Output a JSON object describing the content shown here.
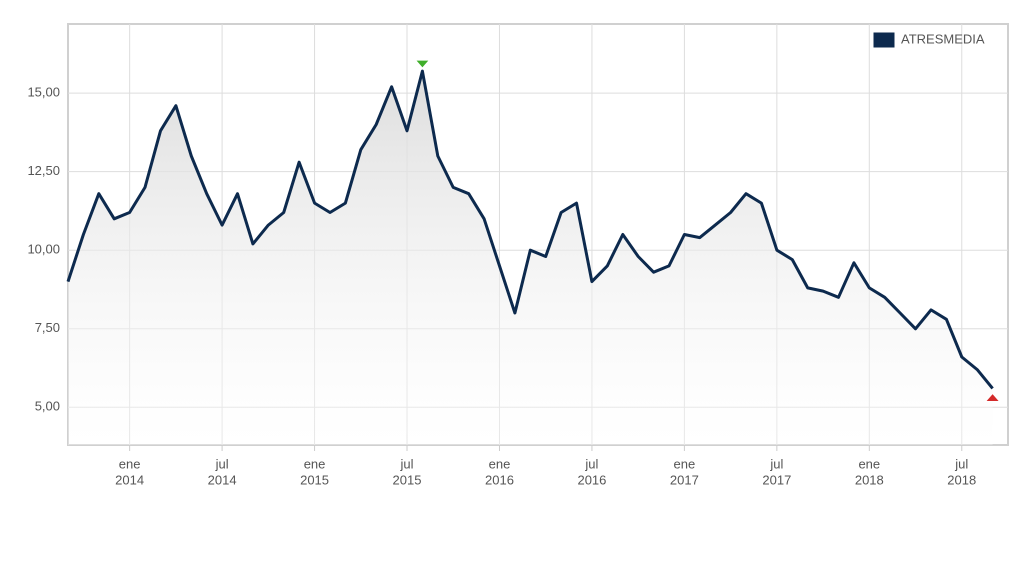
{
  "chart_data": {
    "type": "line",
    "x": [
      "2013-09",
      "2013-10",
      "2013-11",
      "2013-12",
      "2014-01",
      "2014-02",
      "2014-03",
      "2014-04",
      "2014-05",
      "2014-06",
      "2014-07",
      "2014-08",
      "2014-09",
      "2014-10",
      "2014-11",
      "2014-12",
      "2015-01",
      "2015-02",
      "2015-03",
      "2015-04",
      "2015-05",
      "2015-06",
      "2015-07",
      "2015-08",
      "2015-09",
      "2015-10",
      "2015-11",
      "2015-12",
      "2016-01",
      "2016-02",
      "2016-03",
      "2016-04",
      "2016-05",
      "2016-06",
      "2016-07",
      "2016-08",
      "2016-09",
      "2016-10",
      "2016-11",
      "2016-12",
      "2017-01",
      "2017-02",
      "2017-03",
      "2017-04",
      "2017-05",
      "2017-06",
      "2017-07",
      "2017-08",
      "2017-09",
      "2017-10",
      "2017-11",
      "2017-12",
      "2018-01",
      "2018-02",
      "2018-03",
      "2018-04",
      "2018-05",
      "2018-06",
      "2018-07",
      "2018-08",
      "2018-09"
    ],
    "series": [
      {
        "name": "ATRESMEDIA",
        "color": "#0d2a4e",
        "values": [
          9.0,
          10.5,
          11.8,
          11.0,
          11.2,
          12.0,
          13.8,
          14.6,
          13.0,
          11.8,
          10.8,
          11.8,
          10.2,
          10.8,
          11.2,
          12.8,
          11.5,
          11.2,
          11.5,
          13.2,
          14.0,
          15.2,
          13.8,
          15.7,
          13.0,
          12.0,
          11.8,
          11.0,
          9.5,
          8.0,
          10.0,
          9.8,
          11.2,
          11.5,
          9.0,
          9.5,
          10.5,
          9.8,
          9.3,
          9.5,
          10.5,
          10.4,
          10.8,
          11.2,
          11.8,
          11.5,
          10.0,
          9.7,
          8.8,
          8.7,
          8.5,
          9.6,
          8.8,
          8.5,
          8.0,
          7.5,
          8.1,
          7.8,
          6.6,
          6.2,
          5.6
        ]
      }
    ],
    "xlim": [
      "2013-09",
      "2018-10"
    ],
    "xticks": [
      {
        "value": "2014-01",
        "label": [
          "ene",
          "2014"
        ]
      },
      {
        "value": "2014-07",
        "label": [
          "jul",
          "2014"
        ]
      },
      {
        "value": "2015-01",
        "label": [
          "ene",
          "2015"
        ]
      },
      {
        "value": "2015-07",
        "label": [
          "jul",
          "2015"
        ]
      },
      {
        "value": "2016-01",
        "label": [
          "ene",
          "2016"
        ]
      },
      {
        "value": "2016-07",
        "label": [
          "jul",
          "2016"
        ]
      },
      {
        "value": "2017-01",
        "label": [
          "ene",
          "2017"
        ]
      },
      {
        "value": "2017-07",
        "label": [
          "jul",
          "2017"
        ]
      },
      {
        "value": "2018-01",
        "label": [
          "ene",
          "2018"
        ]
      },
      {
        "value": "2018-07",
        "label": [
          "jul",
          "2018"
        ]
      }
    ],
    "ylim": [
      3.8,
      17.2
    ],
    "yticks": [
      {
        "value": 5,
        "label": "5,00"
      },
      {
        "value": 7.5,
        "label": "7,50"
      },
      {
        "value": 10,
        "label": "10,00"
      },
      {
        "value": 12.5,
        "label": "12,50"
      },
      {
        "value": 15,
        "label": "15,00"
      }
    ],
    "grid": true,
    "legend": "top-right",
    "max_marker_color": "#3fae2a",
    "min_marker_color": "#d42a2a"
  }
}
